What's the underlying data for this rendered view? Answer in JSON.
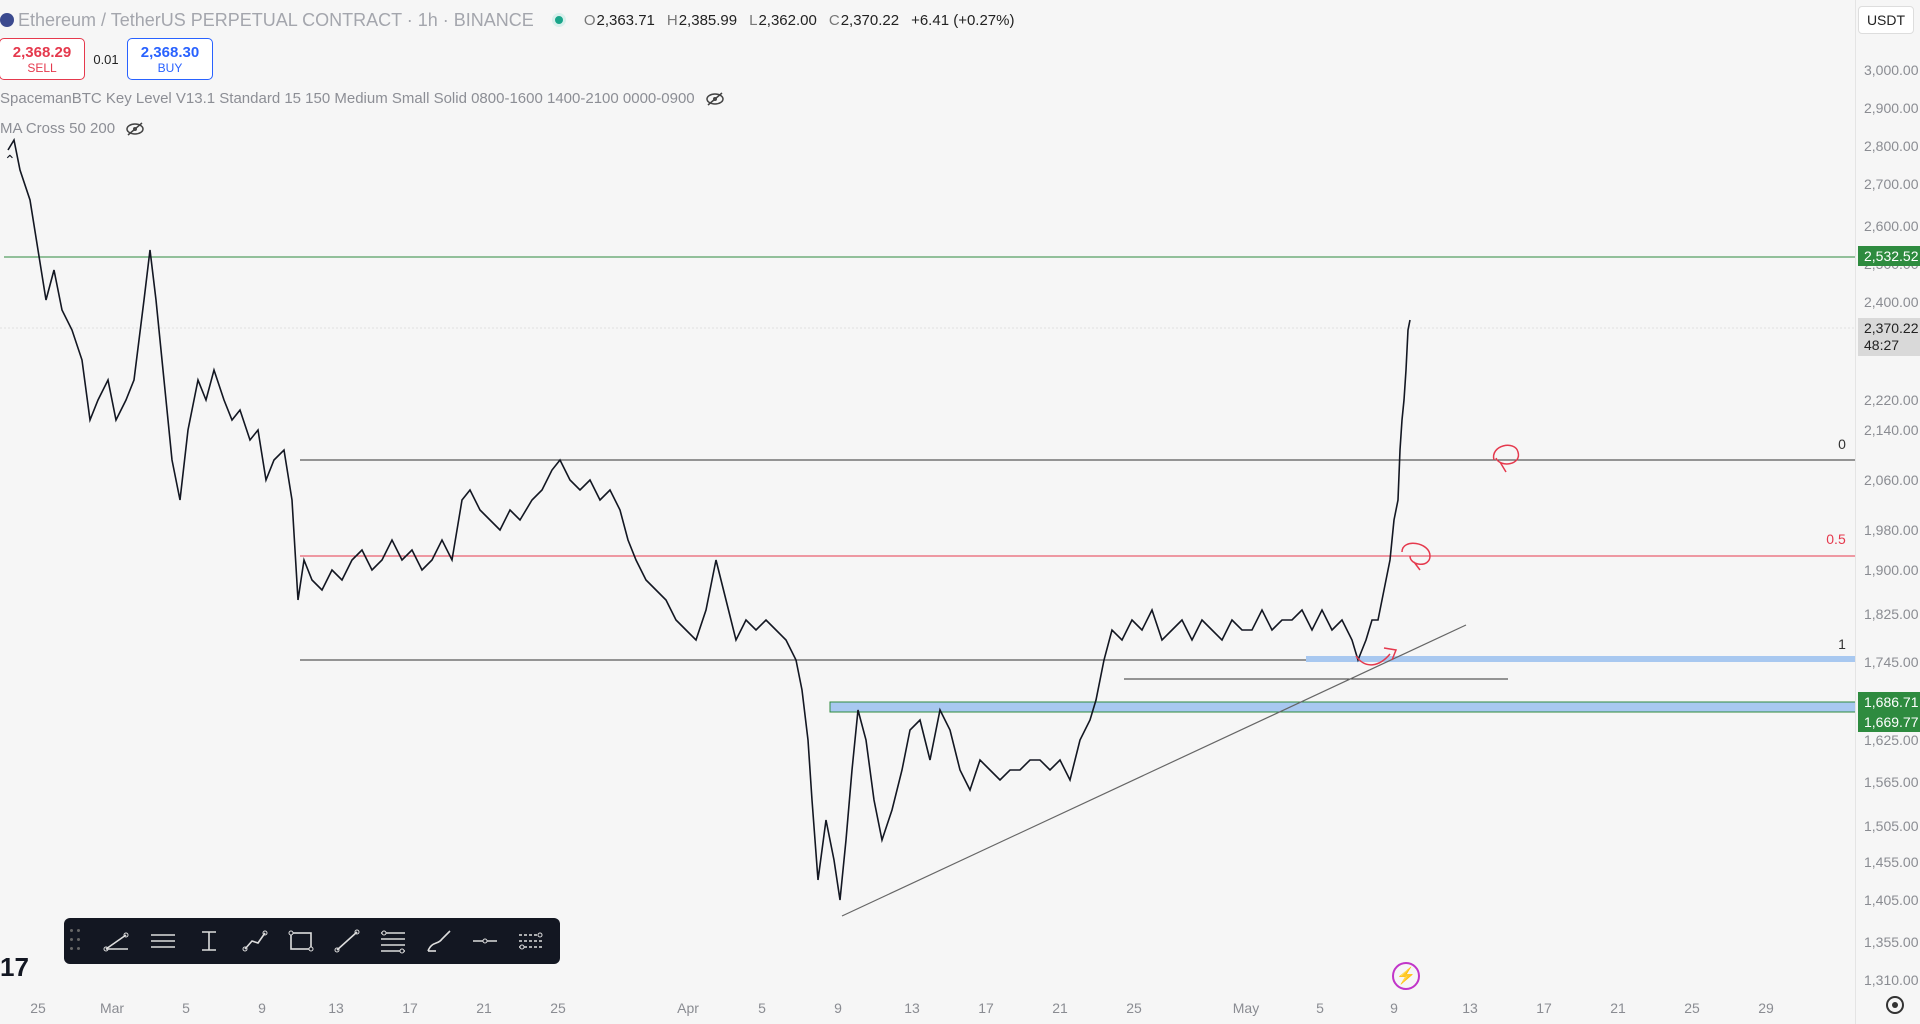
{
  "header": {
    "symbol": "Ethereum / TetherUS PERPETUAL CONTRACT · 1h · BINANCE",
    "open_k": "O",
    "open": "2,363.71",
    "high_k": "H",
    "high": "2,385.99",
    "low_k": "L",
    "low": "2,362.00",
    "close_k": "C",
    "close": "2,370.22",
    "change": "+6.41 (+0.27%)"
  },
  "trade": {
    "sell_price": "2,368.29",
    "sell_label": "SELL",
    "spread": "0.01",
    "buy_price": "2,368.30",
    "buy_label": "BUY"
  },
  "indicators": [
    {
      "label": "SpacemanBTC Key Level V13.1 Standard 15 150 Medium Small Solid 0800-1600 1400-2100 0000-0900"
    },
    {
      "label": "MA Cross 50 200"
    }
  ],
  "axis": {
    "currency": "USDT",
    "ticks": [
      "3,000.00",
      "2,900.00",
      "2,800.00",
      "2,700.00",
      "2,600.00",
      "2,500.00",
      "2,400.00",
      "2,300.00",
      "2,220.00",
      "2,140.00",
      "2,060.00",
      "1,980.00",
      "1,900.00",
      "1,825.00",
      "1,745.00",
      "1,625.00",
      "1,565.00",
      "1,505.00",
      "1,455.00",
      "1,405.00",
      "1,355.00",
      "1,310.00"
    ],
    "badges": [
      "2,532.52",
      "1,686.71",
      "1,669.77"
    ],
    "current_price": "2,370.22",
    "countdown": "48:27"
  },
  "x_ticks": [
    "25",
    "Mar",
    "5",
    "9",
    "13",
    "17",
    "21",
    "25",
    "Apr",
    "5",
    "9",
    "13",
    "17",
    "21",
    "25",
    "May",
    "5",
    "9",
    "13",
    "17",
    "21",
    "25",
    "29"
  ],
  "fib_labels": [
    "0",
    "0.5",
    "1"
  ],
  "toolbar": {
    "tools": [
      "trend-angle-icon",
      "parallel-channel-icon",
      "price-range-icon",
      "path-icon",
      "rectangle-icon",
      "trend-line-icon",
      "fib-retracement-icon",
      "brush-icon",
      "horizontal-line-icon",
      "regression-trend-icon"
    ]
  },
  "colors": {
    "green_line": "#2e8b3f",
    "red_line": "#e5394d",
    "zone_blue": "#a8c8f0",
    "candles": "#131722"
  },
  "chart_data": {
    "type": "line",
    "title": "",
    "x": [
      "25",
      "Mar",
      "5",
      "9",
      "13",
      "17",
      "21",
      "25",
      "Apr",
      "5",
      "9",
      "13",
      "17",
      "21",
      "25",
      "May",
      "5",
      "9"
    ],
    "series": [
      {
        "values": [
          2820,
          2460,
          2380,
          2150,
          1880,
          1950,
          1980,
          2090,
          1950,
          1900,
          1420,
          1620,
          1580,
          1560,
          1860,
          1830,
          1820,
          2370
        ]
      }
    ],
    "ylim": [
      1290,
      3050
    ],
    "horizontal_levels": [
      2532.52,
      2100,
      1925,
      1750,
      1686.71,
      1669.77
    ]
  }
}
